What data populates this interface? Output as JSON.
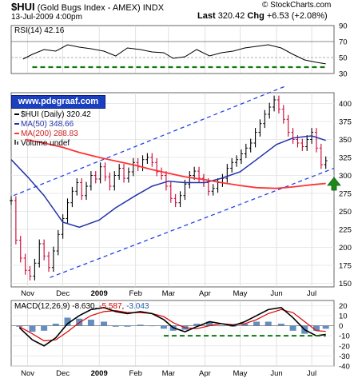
{
  "header": {
    "symbol": "$HUI",
    "name": "(Gold Bugs Index - AMEX)",
    "exchange": "INDX",
    "date": "13-Jul-2009 4:00pm",
    "last_label": "Last",
    "last_value": "320.42",
    "chg_label": "Chg",
    "chg_value": "+6.53 (+2.08%)",
    "stockcharts": "© StockCharts.com"
  },
  "link": "www.pdegraaf.com",
  "colors": {
    "price": "#cc0033",
    "ma50": "#2233aa",
    "ma200": "#ff3333",
    "channel": "#2244ee",
    "support": "#117711",
    "arrow": "#1a8a1a",
    "macd_hist": "#4a7ab5"
  },
  "chart_data": [
    {
      "type": "line",
      "title": "RSI(14) 42.16",
      "ylim": [
        30,
        90
      ],
      "yticks": [
        "90",
        "70",
        "50",
        "30"
      ],
      "overbought": 70,
      "oversold": 30,
      "x": [
        "2008-10-28",
        "2008-11-05",
        "2008-11-15",
        "2008-11-25",
        "2008-12-05",
        "2008-12-15",
        "2008-12-25",
        "2009-01-05",
        "2009-01-15",
        "2009-01-25",
        "2009-02-05",
        "2009-02-15",
        "2009-02-25",
        "2009-03-05",
        "2009-03-15",
        "2009-03-25",
        "2009-04-05",
        "2009-04-15",
        "2009-04-25",
        "2009-05-05",
        "2009-05-15",
        "2009-05-25",
        "2009-06-05",
        "2009-06-15",
        "2009-06-25",
        "2009-07-05",
        "2009-07-13"
      ],
      "values": [
        48,
        54,
        60,
        58,
        66,
        63,
        61,
        58,
        52,
        62,
        60,
        57,
        56,
        49,
        51,
        60,
        52,
        56,
        58,
        62,
        64,
        66,
        62,
        54,
        47,
        44,
        42.16
      ],
      "support_y": 38,
      "support_from": "2008-11-05",
      "support_to": "2009-07-13"
    },
    {
      "type": "candlestick",
      "legend": [
        "$HUI (Daily) 320.42",
        "MA(50) 348.66",
        "MA(200) 288.83",
        "Volume undef"
      ],
      "ylim": [
        145,
        415
      ],
      "yticks": [
        "400",
        "375",
        "350",
        "325",
        "300",
        "275",
        "250",
        "225",
        "200",
        "175",
        "150"
      ],
      "xticks": [
        "Nov",
        "Dec",
        "2009",
        "Feb",
        "Mar",
        "Apr",
        "May",
        "Jun",
        "Jul"
      ],
      "xtick_dates": [
        "2008-11-01",
        "2008-12-01",
        "2009-01-01",
        "2009-02-01",
        "2009-03-01",
        "2009-04-01",
        "2009-05-01",
        "2009-06-01",
        "2009-07-01"
      ],
      "xlim": [
        "2008-10-18",
        "2009-07-20"
      ],
      "price": {
        "x": [
          "2008-10-18",
          "2008-10-22",
          "2008-10-26",
          "2008-10-30",
          "2008-11-03",
          "2008-11-07",
          "2008-11-11",
          "2008-11-15",
          "2008-11-19",
          "2008-11-23",
          "2008-11-27",
          "2008-12-01",
          "2008-12-05",
          "2008-12-09",
          "2008-12-13",
          "2008-12-17",
          "2008-12-21",
          "2008-12-25",
          "2008-12-29",
          "2009-01-02",
          "2009-01-06",
          "2009-01-10",
          "2009-01-14",
          "2009-01-18",
          "2009-01-22",
          "2009-01-26",
          "2009-01-30",
          "2009-02-03",
          "2009-02-07",
          "2009-02-11",
          "2009-02-15",
          "2009-02-19",
          "2009-02-23",
          "2009-02-27",
          "2009-03-03",
          "2009-03-07",
          "2009-03-11",
          "2009-03-15",
          "2009-03-19",
          "2009-03-23",
          "2009-03-27",
          "2009-03-31",
          "2009-04-04",
          "2009-04-08",
          "2009-04-12",
          "2009-04-16",
          "2009-04-20",
          "2009-04-24",
          "2009-04-28",
          "2009-05-02",
          "2009-05-06",
          "2009-05-10",
          "2009-05-14",
          "2009-05-18",
          "2009-05-22",
          "2009-05-26",
          "2009-05-30",
          "2009-06-03",
          "2009-06-07",
          "2009-06-11",
          "2009-06-15",
          "2009-06-19",
          "2009-06-23",
          "2009-06-27",
          "2009-07-01",
          "2009-07-05",
          "2009-07-09",
          "2009-07-13"
        ],
        "close": [
          265,
          210,
          185,
          168,
          160,
          178,
          205,
          188,
          172,
          195,
          218,
          240,
          262,
          278,
          290,
          272,
          285,
          300,
          295,
          312,
          298,
          285,
          300,
          310,
          296,
          305,
          318,
          312,
          322,
          325,
          318,
          305,
          300,
          285,
          268,
          262,
          272,
          288,
          300,
          306,
          296,
          290,
          278,
          282,
          290,
          296,
          310,
          318,
          322,
          330,
          338,
          345,
          360,
          372,
          385,
          395,
          405,
          392,
          378,
          360,
          350,
          345,
          340,
          350,
          360,
          338,
          315,
          320.42
        ]
      },
      "ma50": {
        "x": [
          "2008-10-18",
          "2008-11-01",
          "2008-11-15",
          "2008-12-01",
          "2008-12-15",
          "2009-01-01",
          "2009-01-15",
          "2009-02-01",
          "2009-02-15",
          "2009-03-01",
          "2009-03-15",
          "2009-04-01",
          "2009-04-15",
          "2009-05-01",
          "2009-05-15",
          "2009-06-01",
          "2009-06-15",
          "2009-07-01",
          "2009-07-13"
        ],
        "values": [
          322,
          298,
          272,
          235,
          228,
          238,
          255,
          272,
          285,
          292,
          290,
          290,
          296,
          305,
          322,
          343,
          352,
          355,
          348.66
        ]
      },
      "ma200": {
        "x": [
          "2008-10-30",
          "2008-11-15",
          "2008-12-01",
          "2008-12-15",
          "2009-01-01",
          "2009-01-15",
          "2009-02-01",
          "2009-02-15",
          "2009-03-01",
          "2009-03-15",
          "2009-04-01",
          "2009-04-15",
          "2009-05-01",
          "2009-05-15",
          "2009-06-01",
          "2009-06-15",
          "2009-07-01",
          "2009-07-13"
        ],
        "values": [
          350,
          345,
          339,
          332,
          325,
          320,
          314,
          308,
          303,
          298,
          294,
          290,
          286,
          283,
          282,
          284,
          287,
          288.83
        ]
      },
      "channel_upper": {
        "x": [
          "2008-10-20",
          "2009-06-10"
        ],
        "values": [
          272,
          425
        ]
      },
      "channel_lower": {
        "x": [
          "2008-11-20",
          "2009-07-20"
        ],
        "values": [
          158,
          310
        ]
      }
    },
    {
      "type": "bar",
      "title_prefix": "MACD(12,26,9)",
      "title_values": [
        "-8.630",
        "-5.587",
        "-3.043"
      ],
      "ylim": [
        -40,
        25
      ],
      "yticks": [
        "20",
        "10",
        "0",
        "-10",
        "-20",
        "-30",
        "-40"
      ],
      "xticks": [
        "Nov",
        "Dec",
        "2009",
        "Feb",
        "Mar",
        "Apr",
        "May",
        "Jun",
        "Jul"
      ],
      "x": [
        "2008-10-25",
        "2008-11-05",
        "2008-11-15",
        "2008-11-25",
        "2008-12-05",
        "2008-12-15",
        "2008-12-25",
        "2009-01-05",
        "2009-01-15",
        "2009-01-25",
        "2009-02-05",
        "2009-02-15",
        "2009-02-25",
        "2009-03-05",
        "2009-03-15",
        "2009-03-25",
        "2009-04-05",
        "2009-04-15",
        "2009-04-25",
        "2009-05-05",
        "2009-05-15",
        "2009-05-25",
        "2009-06-05",
        "2009-06-15",
        "2009-06-25",
        "2009-07-05",
        "2009-07-13"
      ],
      "macd": [
        -2,
        -14,
        -20,
        -12,
        2,
        10,
        16,
        18,
        14,
        12,
        14,
        12,
        6,
        -2,
        -6,
        -1,
        4,
        2,
        0,
        4,
        10,
        16,
        18,
        8,
        -4,
        -10,
        -8.63
      ],
      "signal": [
        -1,
        -8,
        -15,
        -14,
        -6,
        3,
        10,
        14,
        15,
        13,
        13,
        12,
        9,
        3,
        -2,
        -3,
        0,
        2,
        1,
        2,
        6,
        12,
        16,
        13,
        4,
        -5,
        -5.587
      ],
      "histogram": [
        -1,
        -6,
        -5,
        2,
        8,
        7,
        6,
        4,
        -1,
        -1,
        1,
        0,
        -3,
        -5,
        -4,
        2,
        4,
        0,
        -1,
        2,
        4,
        4,
        2,
        -5,
        -8,
        -5,
        -3.043
      ],
      "support_y": -10,
      "support_from": "2009-02-25",
      "support_to": "2009-07-13"
    }
  ]
}
